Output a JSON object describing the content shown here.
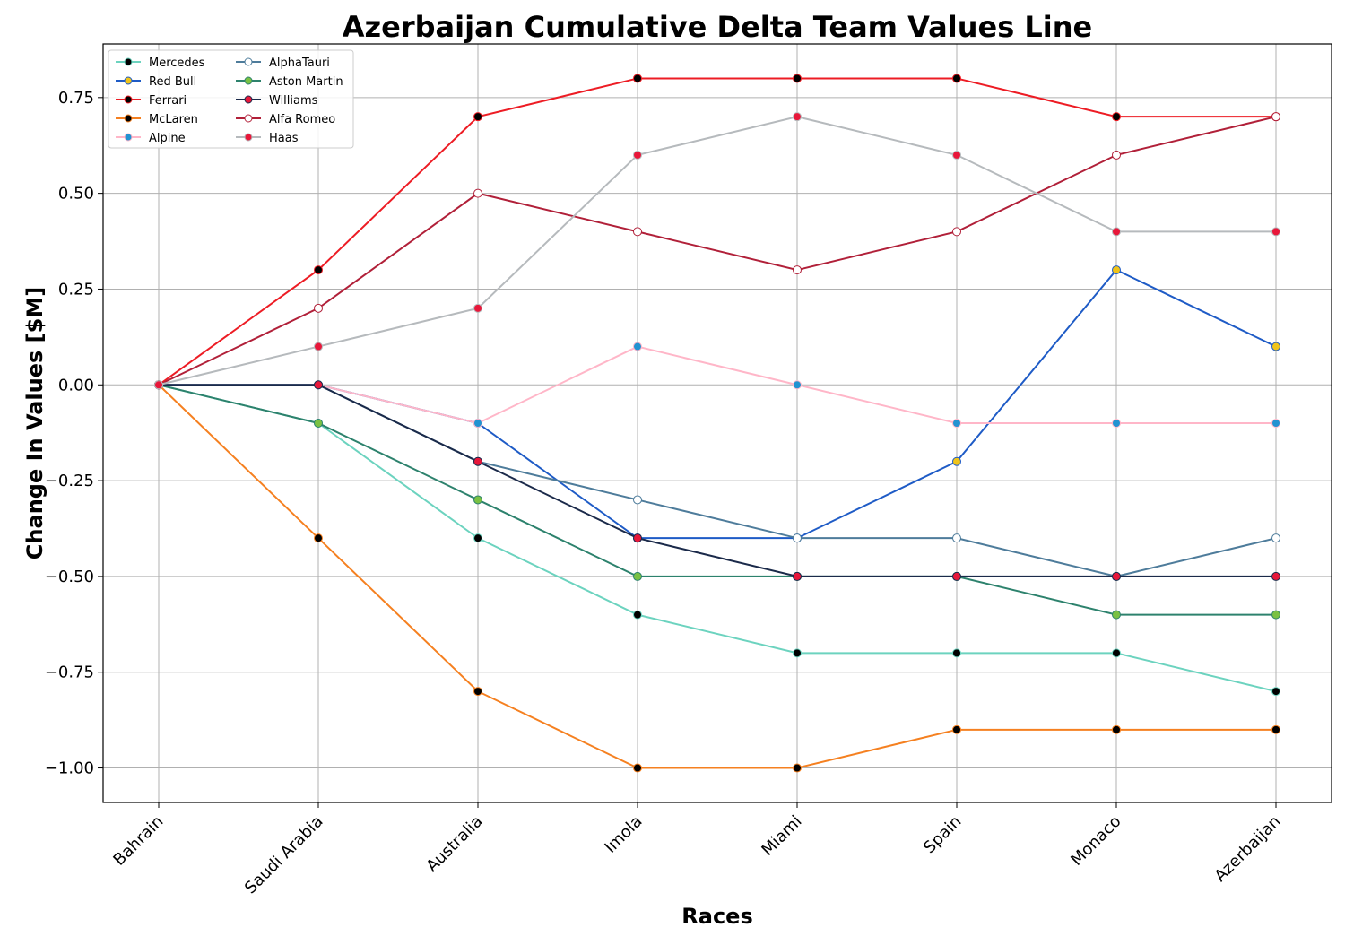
{
  "chart_data": {
    "type": "line",
    "title": "Azerbaijan Cumulative Delta Team Values Line",
    "xlabel": "Races",
    "ylabel": "Change In Values [$M]",
    "categories": [
      "Bahrain",
      "Saudi Arabia",
      "Australia",
      "Imola",
      "Miami",
      "Spain",
      "Monaco",
      "Azerbaijan"
    ],
    "ylim": [
      -1.09,
      0.89
    ],
    "yticks": [
      -1.0,
      -0.75,
      -0.5,
      -0.25,
      0.0,
      0.25,
      0.5,
      0.75
    ],
    "ytick_labels": [
      "−1.00",
      "−0.75",
      "−0.50",
      "−0.25",
      "0.00",
      "0.25",
      "0.50",
      "0.75"
    ],
    "grid": true,
    "legend_position": "top-left",
    "legend_columns": 2,
    "series": [
      {
        "name": "Mercedes",
        "line_color": "#6cd3bf",
        "marker_face": "#000000",
        "marker_edge": "#6cd3bf",
        "values": [
          0,
          -0.1,
          -0.4,
          -0.6,
          -0.7,
          -0.7,
          -0.7,
          -0.8
        ]
      },
      {
        "name": "Red Bull",
        "line_color": "#1e5bc6",
        "marker_face": "#f0c419",
        "marker_edge": "#1e5bc6",
        "values": [
          0,
          0,
          -0.1,
          -0.4,
          -0.4,
          -0.2,
          0.3,
          0.1
        ]
      },
      {
        "name": "Ferrari",
        "line_color": "#ed1c24",
        "marker_face": "#000000",
        "marker_edge": "#ed1c24",
        "values": [
          0,
          0.3,
          0.7,
          0.8,
          0.8,
          0.8,
          0.7,
          0.7
        ]
      },
      {
        "name": "McLaren",
        "line_color": "#f58020",
        "marker_face": "#000000",
        "marker_edge": "#f58020",
        "values": [
          0,
          -0.4,
          -0.8,
          -1.0,
          -1.0,
          -0.9,
          -0.9,
          -0.9
        ]
      },
      {
        "name": "Alpine",
        "line_color": "#ffb6c8",
        "marker_face": "#2293d1",
        "marker_edge": "#ffb6c8",
        "values": [
          0,
          0,
          -0.1,
          0.1,
          0,
          -0.1,
          -0.1,
          -0.1
        ]
      },
      {
        "name": "AlphaTauri",
        "line_color": "#4e7c9b",
        "marker_face": "#ffffff",
        "marker_edge": "#4e7c9b",
        "values": [
          0,
          0,
          -0.2,
          -0.3,
          -0.4,
          -0.4,
          -0.5,
          -0.4
        ]
      },
      {
        "name": "Aston Martin",
        "line_color": "#2d826d",
        "marker_face": "#7ac143",
        "marker_edge": "#2d826d",
        "values": [
          0,
          -0.1,
          -0.3,
          -0.5,
          -0.5,
          -0.5,
          -0.6,
          -0.6
        ]
      },
      {
        "name": "Williams",
        "line_color": "#1b2a4a",
        "marker_face": "#e8173a",
        "marker_edge": "#1b2a4a",
        "values": [
          0,
          0,
          -0.2,
          -0.4,
          -0.5,
          -0.5,
          -0.5,
          -0.5
        ]
      },
      {
        "name": "Alfa Romeo",
        "line_color": "#b12039",
        "marker_face": "#ffffff",
        "marker_edge": "#b12039",
        "values": [
          0,
          0.2,
          0.5,
          0.4,
          0.3,
          0.4,
          0.6,
          0.7
        ]
      },
      {
        "name": "Haas",
        "line_color": "#b6babd",
        "marker_face": "#e8173a",
        "marker_edge": "#b6babd",
        "values": [
          0,
          0.1,
          0.2,
          0.6,
          0.7,
          0.6,
          0.4,
          0.4
        ]
      }
    ]
  }
}
